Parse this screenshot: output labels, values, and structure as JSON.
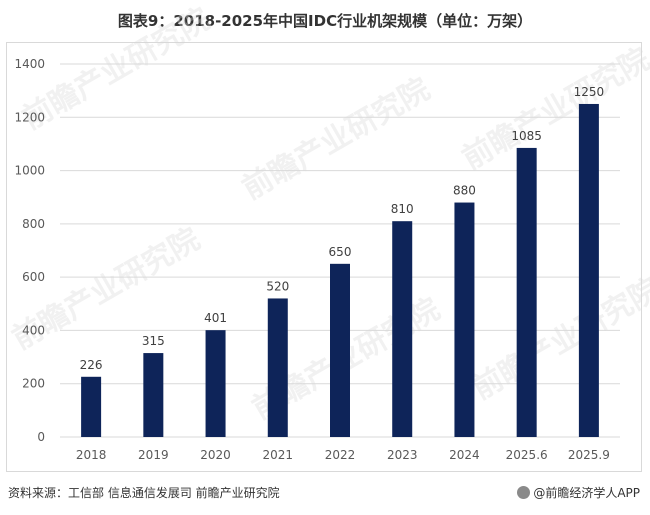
{
  "title": "图表9：2018-2025年中国IDC行业机架规模（单位：万架）",
  "source": "资料来源：工信部 信息通信发展司 前瞻产业研究院",
  "brand": "@前瞻经济学人APP",
  "watermark": "前瞻产业研究院",
  "colors": {
    "bar": "#0e2459",
    "grid": "#d9d9d9",
    "text": "#595959"
  },
  "chart_data": {
    "type": "bar",
    "categories": [
      "2018",
      "2019",
      "2020",
      "2021",
      "2022",
      "2023",
      "2024",
      "2025.6",
      "2025.9"
    ],
    "values": [
      226,
      315,
      401,
      520,
      650,
      810,
      880,
      1085,
      1250
    ],
    "yticks": [
      0,
      200,
      400,
      600,
      800,
      1000,
      1200,
      1400
    ],
    "ylim": [
      0,
      1400
    ],
    "grid": true,
    "data_labels": true
  }
}
